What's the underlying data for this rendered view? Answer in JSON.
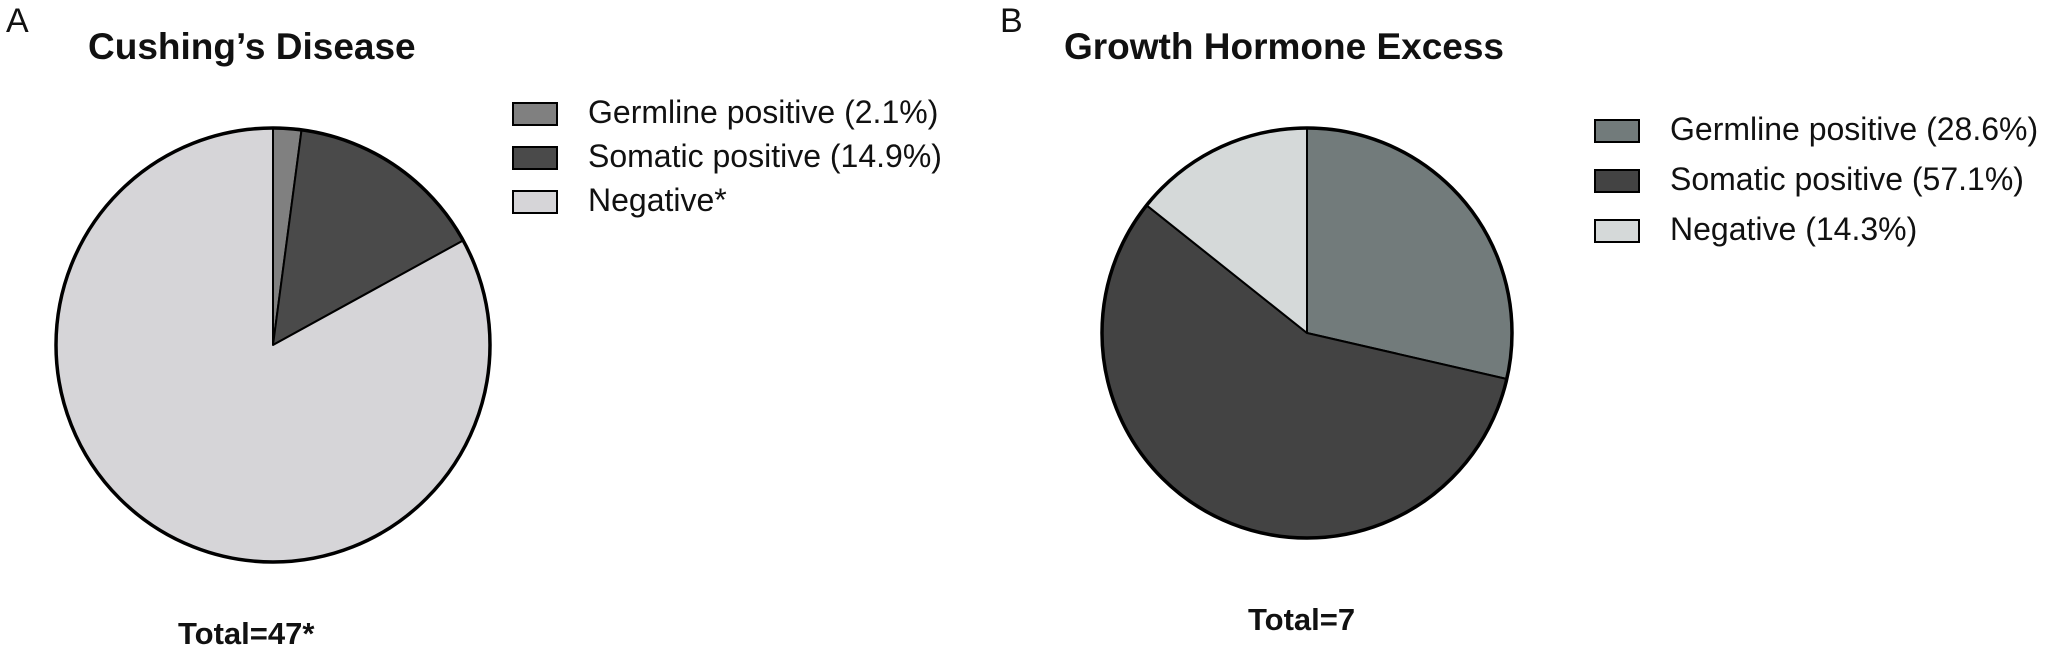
{
  "panels": [
    {
      "letter": "A",
      "total": "Total=47*"
    },
    {
      "letter": "B",
      "total": "Total=7"
    }
  ],
  "chart_data": [
    {
      "type": "pie",
      "title": "Cushing’s Disease",
      "categories": [
        "Germline positive (2.1%)",
        "Somatic positive (14.9%)",
        "Negative*"
      ],
      "values": [
        2.1,
        14.9,
        83.0
      ],
      "colors": [
        "#808080",
        "#4a4a4a",
        "#d6d5d8"
      ],
      "legend": "top-right",
      "total_label": "Total=47*"
    },
    {
      "type": "pie",
      "title": "Growth Hormone Excess",
      "categories": [
        "Germline positive (28.6%)",
        "Somatic positive (57.1%)",
        "Negative (14.3%)"
      ],
      "values": [
        28.6,
        57.1,
        14.3
      ],
      "colors": [
        "#727b7b",
        "#434343",
        "#d5d9d9"
      ],
      "legend": "top-right",
      "total_label": "Total=7"
    }
  ]
}
